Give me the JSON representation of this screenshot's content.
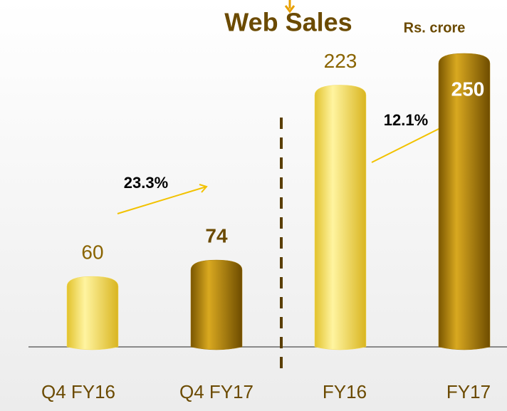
{
  "chart_data": {
    "type": "bar",
    "title": "Web Sales",
    "subtitle": "Rs. crore",
    "categories": [
      "Q4 FY16",
      "Q4 FY17",
      "FY16",
      "FY17"
    ],
    "values": [
      60,
      74,
      223,
      250
    ],
    "colors": [
      "#f5dc5a",
      "#a87b05",
      "#f5dc5a",
      "#a87b05"
    ],
    "annotations": [
      "23.3%",
      "12.1%"
    ]
  }
}
